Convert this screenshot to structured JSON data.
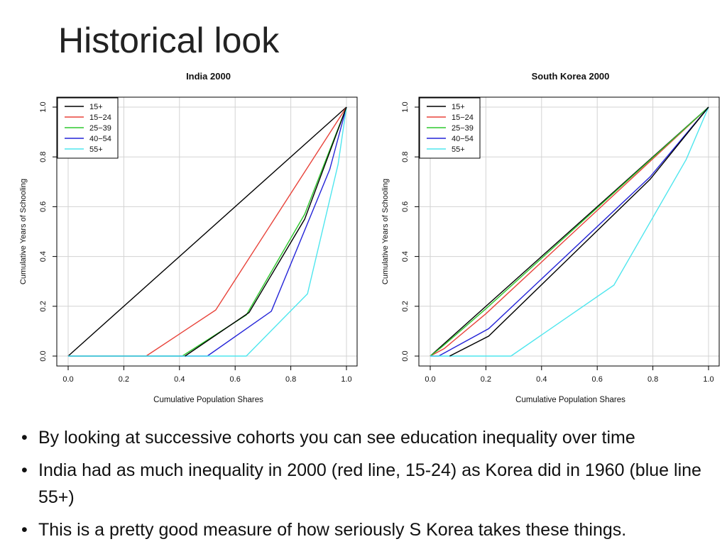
{
  "slide": {
    "title": "Historical look",
    "bullets": [
      "By looking at successive cohorts you can see education inequality over time",
      "India had as much inequality in 2000 (red line, 15-24) as Korea did in 1960 (blue line 55+)",
      "This is a pretty good measure of how seriously S Korea takes these things."
    ]
  },
  "chart_data": [
    {
      "type": "line",
      "title": "India 2000",
      "xlabel": "Cumulative Population Shares",
      "ylabel": "Cumulative Years of Schooling",
      "xlim": [
        0,
        1
      ],
      "ylim": [
        0,
        1
      ],
      "xticks": [
        "0.0",
        "0.2",
        "0.4",
        "0.6",
        "0.8",
        "1.0"
      ],
      "yticks": [
        "0.0",
        "0.2",
        "0.4",
        "0.6",
        "0.8",
        "1.0"
      ],
      "grid": true,
      "legend_position": "top-left",
      "series": [
        {
          "name": "15+",
          "color": "#000000",
          "points": [
            [
              0,
              0
            ],
            [
              1,
              1
            ]
          ]
        },
        {
          "name": "15−24",
          "color": "#e8433a",
          "points": [
            [
              0,
              0
            ],
            [
              0.28,
              0
            ],
            [
              0.53,
              0.185
            ],
            [
              1,
              1
            ]
          ]
        },
        {
          "name": "25−39",
          "color": "#2ec82e",
          "points": [
            [
              0,
              0
            ],
            [
              0.41,
              0
            ],
            [
              0.64,
              0.165
            ],
            [
              0.85,
              0.57
            ],
            [
              1,
              1
            ]
          ]
        },
        {
          "name": "40−54",
          "color": "#2424d8",
          "points": [
            [
              0,
              0
            ],
            [
              0.5,
              0
            ],
            [
              0.73,
              0.18
            ],
            [
              0.94,
              0.75
            ],
            [
              1,
              1
            ]
          ]
        },
        {
          "name": "55+",
          "color": "#4fe6ee",
          "points": [
            [
              0,
              0
            ],
            [
              0.64,
              0
            ],
            [
              0.86,
              0.25
            ],
            [
              0.97,
              0.77
            ],
            [
              1,
              1
            ]
          ]
        },
        {
          "name": "",
          "color": "#000000",
          "points": [
            [
              0.42,
              0
            ],
            [
              0.65,
              0.175
            ],
            [
              0.85,
              0.55
            ],
            [
              1,
              1
            ]
          ]
        }
      ]
    },
    {
      "type": "line",
      "title": "South Korea 2000",
      "xlabel": "Cumulative Population Shares",
      "ylabel": "Cumulative Years of Schooling",
      "xlim": [
        0,
        1
      ],
      "ylim": [
        0,
        1
      ],
      "xticks": [
        "0.0",
        "0.2",
        "0.4",
        "0.6",
        "0.8",
        "1.0"
      ],
      "yticks": [
        "0.0",
        "0.2",
        "0.4",
        "0.6",
        "0.8",
        "1.0"
      ],
      "grid": true,
      "legend_position": "top-left",
      "series": [
        {
          "name": "15+",
          "color": "#000000",
          "points": [
            [
              0,
              0
            ],
            [
              1,
              1
            ]
          ]
        },
        {
          "name": "15−24",
          "color": "#e8433a",
          "points": [
            [
              0,
              0
            ],
            [
              0.05,
              0.03
            ],
            [
              0.2,
              0.17
            ],
            [
              1,
              1
            ]
          ]
        },
        {
          "name": "25−39",
          "color": "#2ec82e",
          "points": [
            [
              0,
              0
            ],
            [
              0.04,
              0.035
            ],
            [
              0.2,
              0.19
            ],
            [
              1,
              1
            ]
          ]
        },
        {
          "name": "40−54",
          "color": "#2424d8",
          "points": [
            [
              0,
              0
            ],
            [
              0.03,
              0
            ],
            [
              0.21,
              0.11
            ],
            [
              0.79,
              0.72
            ],
            [
              1,
              1
            ]
          ]
        },
        {
          "name": "55+",
          "color": "#4fe6ee",
          "points": [
            [
              0,
              0
            ],
            [
              0.29,
              0
            ],
            [
              0.66,
              0.285
            ],
            [
              0.92,
              0.79
            ],
            [
              1,
              1
            ]
          ]
        },
        {
          "name": "",
          "color": "#000000",
          "points": [
            [
              0.07,
              0
            ],
            [
              0.21,
              0.08
            ],
            [
              0.79,
              0.71
            ],
            [
              1,
              1
            ]
          ]
        }
      ]
    }
  ]
}
